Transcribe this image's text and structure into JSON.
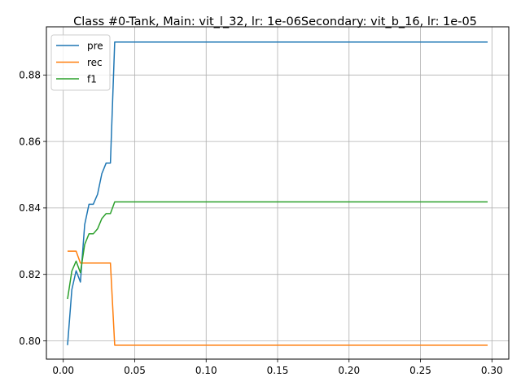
{
  "chart_data": {
    "type": "line",
    "title": "Class #0-Tank, Main: vit_l_32, lr: 1e-06Secondary: vit_b_16, lr: 1e-05",
    "xlabel": "",
    "ylabel": "",
    "xlim": [
      -0.0118,
      0.3118
    ],
    "ylim": [
      0.7945,
      0.8945
    ],
    "xticks": [
      0.0,
      0.05,
      0.1,
      0.15,
      0.2,
      0.25,
      0.3
    ],
    "xtick_labels": [
      "0.00",
      "0.05",
      "0.10",
      "0.15",
      "0.20",
      "0.25",
      "0.30"
    ],
    "yticks": [
      0.8,
      0.82,
      0.84,
      0.86,
      0.88
    ],
    "ytick_labels": [
      "0.80",
      "0.82",
      "0.84",
      "0.86",
      "0.88"
    ],
    "grid": true,
    "legend_position": "top-left",
    "series": [
      {
        "name": "pre",
        "color": "#1f77b4",
        "x": [
          0.003,
          0.006,
          0.009,
          0.012,
          0.015,
          0.018,
          0.021,
          0.024,
          0.027,
          0.03,
          0.033,
          0.036,
          0.297
        ],
        "y": [
          0.7987,
          0.8154,
          0.8211,
          0.8177,
          0.835,
          0.8411,
          0.8411,
          0.8441,
          0.8503,
          0.8535,
          0.8535,
          0.8899,
          0.8899
        ]
      },
      {
        "name": "rec",
        "color": "#ff7f0e",
        "x": [
          0.003,
          0.006,
          0.009,
          0.012,
          0.015,
          0.018,
          0.021,
          0.024,
          0.027,
          0.03,
          0.033,
          0.036,
          0.297
        ],
        "y": [
          0.827,
          0.827,
          0.827,
          0.8234,
          0.8234,
          0.8234,
          0.8234,
          0.8234,
          0.8234,
          0.8234,
          0.8234,
          0.7987,
          0.7987
        ]
      },
      {
        "name": "f1",
        "color": "#2ca02c",
        "x": [
          0.003,
          0.006,
          0.009,
          0.012,
          0.015,
          0.018,
          0.021,
          0.024,
          0.027,
          0.03,
          0.033,
          0.036,
          0.297
        ],
        "y": [
          0.8126,
          0.821,
          0.824,
          0.8205,
          0.829,
          0.8322,
          0.8322,
          0.8337,
          0.8368,
          0.8383,
          0.8383,
          0.8418,
          0.8418
        ]
      }
    ]
  }
}
